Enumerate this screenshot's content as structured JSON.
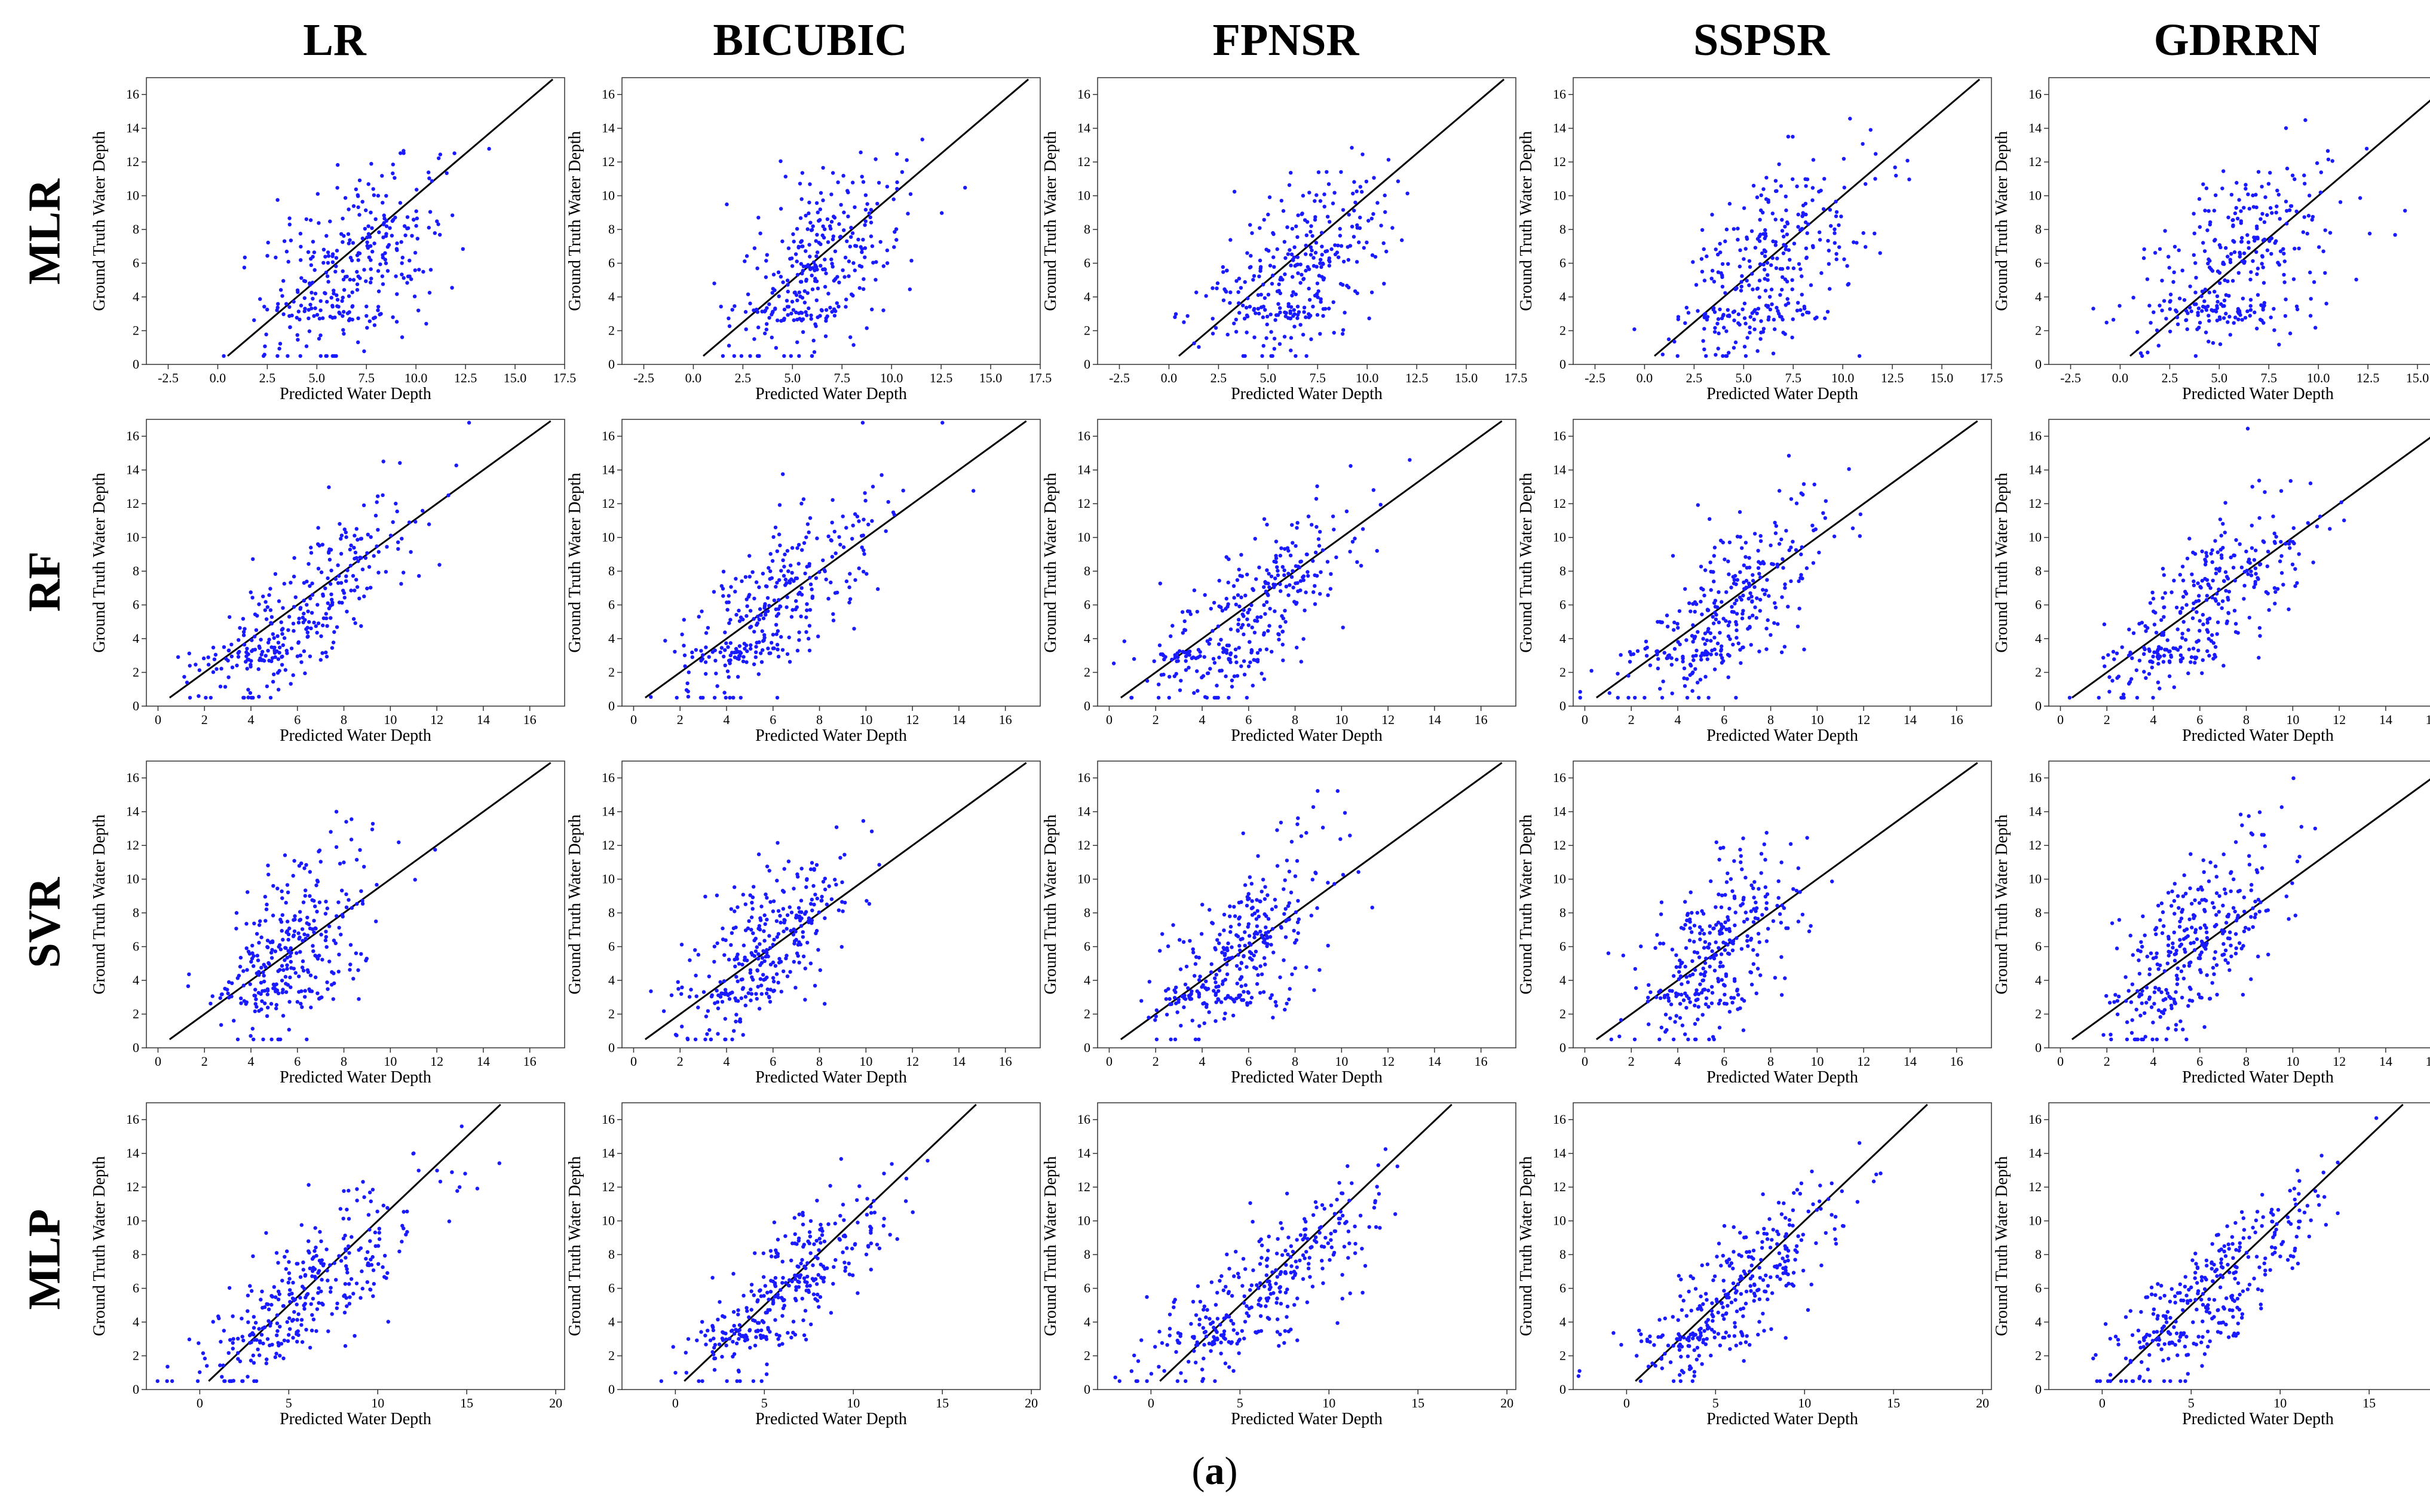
{
  "figure": {
    "caption_open": "(",
    "caption_letter": "a",
    "caption_close": ")",
    "column_titles": [
      "LR",
      "BICUBIC",
      "FPNSR",
      "SSPSR",
      "GDRRN"
    ],
    "row_titles": [
      "MLR",
      "RF",
      "SVR",
      "MLP"
    ]
  },
  "colors": {
    "points": "#1a1aff",
    "line": "#000000",
    "axis": "#333333"
  },
  "chart_data": {
    "type": "scatter",
    "title": "",
    "xlabel": "Predicted Water Depth",
    "ylabel": "Ground Truth Water Depth",
    "ylim": [
      0,
      17
    ],
    "yticks": [
      0,
      2,
      4,
      6,
      8,
      10,
      12,
      14,
      16
    ],
    "reference_line": "y = x",
    "rows": [
      {
        "model": "MLR",
        "xlim": [
          -3.6,
          17.5
        ],
        "xticks": [
          -2.5,
          0.0,
          2.5,
          5.0,
          7.5,
          10.0,
          12.5,
          15.0,
          17.5
        ],
        "tick_format": "1dp"
      },
      {
        "model": "RF",
        "xlim": [
          -0.5,
          17.5
        ],
        "xticks": [
          0,
          2,
          4,
          6,
          8,
          10,
          12,
          14,
          16
        ],
        "tick_format": "int"
      },
      {
        "model": "SVR",
        "xlim": [
          -0.5,
          17.5
        ],
        "xticks": [
          0,
          2,
          4,
          6,
          8,
          10,
          12,
          14,
          16
        ],
        "tick_format": "int"
      },
      {
        "model": "MLP",
        "xlim": [
          -3.0,
          20.5
        ],
        "xticks": [
          0,
          5,
          10,
          15,
          20
        ],
        "tick_format": "int"
      }
    ],
    "series": [
      {
        "row": "MLR",
        "col": "LR",
        "r": 0.55,
        "x_mean": 6.8,
        "x_sd": 2.3
      },
      {
        "row": "MLR",
        "col": "BICUBIC",
        "r": 0.55,
        "x_mean": 6.5,
        "x_sd": 2.3
      },
      {
        "row": "MLR",
        "col": "FPNSR",
        "r": 0.55,
        "x_mean": 6.8,
        "x_sd": 2.4
      },
      {
        "row": "MLR",
        "col": "SSPSR",
        "r": 0.55,
        "x_mean": 6.5,
        "x_sd": 2.4
      },
      {
        "row": "MLR",
        "col": "GDRRN",
        "r": 0.5,
        "x_mean": 6.0,
        "x_sd": 2.6
      },
      {
        "row": "RF",
        "col": "LR",
        "r": 0.78,
        "x_mean": 6.5,
        "x_sd": 2.3
      },
      {
        "row": "RF",
        "col": "BICUBIC",
        "r": 0.75,
        "x_mean": 6.3,
        "x_sd": 2.2
      },
      {
        "row": "RF",
        "col": "FPNSR",
        "r": 0.72,
        "x_mean": 6.3,
        "x_sd": 2.2
      },
      {
        "row": "RF",
        "col": "SSPSR",
        "r": 0.72,
        "x_mean": 6.3,
        "x_sd": 2.2
      },
      {
        "row": "RF",
        "col": "GDRRN",
        "r": 0.72,
        "x_mean": 6.3,
        "x_sd": 2.2
      },
      {
        "row": "SVR",
        "col": "LR",
        "r": 0.55,
        "x_mean": 5.8,
        "x_sd": 1.7
      },
      {
        "row": "SVR",
        "col": "BICUBIC",
        "r": 0.6,
        "x_mean": 5.8,
        "x_sd": 1.8
      },
      {
        "row": "SVR",
        "col": "FPNSR",
        "r": 0.6,
        "x_mean": 5.8,
        "x_sd": 1.8
      },
      {
        "row": "SVR",
        "col": "SSPSR",
        "r": 0.6,
        "x_mean": 5.8,
        "x_sd": 1.8
      },
      {
        "row": "SVR",
        "col": "GDRRN",
        "r": 0.6,
        "x_mean": 5.8,
        "x_sd": 1.8
      },
      {
        "row": "MLP",
        "col": "LR",
        "r": 0.8,
        "x_mean": 6.3,
        "x_sd": 3.3
      },
      {
        "row": "MLP",
        "col": "BICUBIC",
        "r": 0.82,
        "x_mean": 6.3,
        "x_sd": 3.0
      },
      {
        "row": "MLP",
        "col": "FPNSR",
        "r": 0.82,
        "x_mean": 6.5,
        "x_sd": 3.3
      },
      {
        "row": "MLP",
        "col": "SSPSR",
        "r": 0.8,
        "x_mean": 6.3,
        "x_sd": 3.0
      },
      {
        "row": "MLP",
        "col": "GDRRN",
        "r": 0.82,
        "x_mean": 6.3,
        "x_sd": 3.0
      }
    ],
    "points_per_panel": 320,
    "y_distribution": "ground truth depths roughly 0.5 to 17, concentrated between 2 and 10"
  }
}
